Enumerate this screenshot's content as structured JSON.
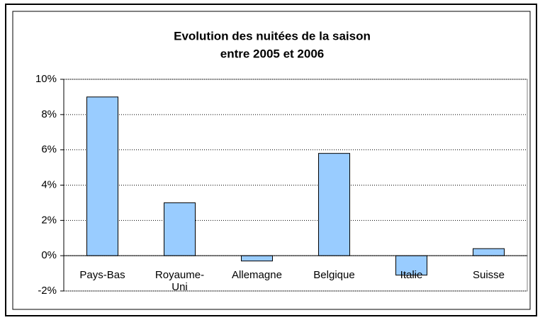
{
  "chart_data": {
    "type": "bar",
    "title": [
      "Evolution des nuitées de la saison",
      "entre 2005 et 2006"
    ],
    "categories": [
      "Pays-Bas",
      "Royaume-Uni",
      "Allemagne",
      "Belgique",
      "Italie",
      "Suisse"
    ],
    "values": [
      9.0,
      3.0,
      -0.3,
      5.8,
      -1.1,
      0.4
    ],
    "color": "#99ccff",
    "ylim": [
      -2,
      10
    ],
    "yticks": [
      {
        "value": -2,
        "label": "-2%"
      },
      {
        "value": 0,
        "label": "0%"
      },
      {
        "value": 2,
        "label": "2%"
      },
      {
        "value": 4,
        "label": "4%"
      },
      {
        "value": 6,
        "label": "6%"
      },
      {
        "value": 8,
        "label": "8%"
      },
      {
        "value": 10,
        "label": "10%"
      }
    ],
    "grid": true
  }
}
